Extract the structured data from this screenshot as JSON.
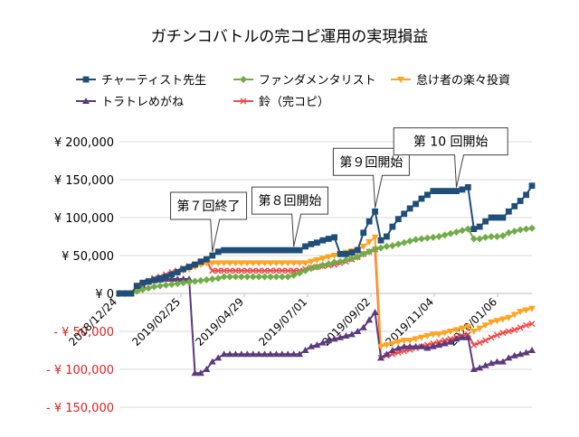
{
  "chart_data": {
    "type": "line",
    "title": "ガチンコバトルの完コピ運用の実現損益",
    "xlabel": "",
    "ylabel": "",
    "ylim": [
      -150000,
      200000
    ],
    "yticks": [
      200000,
      150000,
      100000,
      50000,
      0,
      -50000,
      -100000,
      -150000
    ],
    "ytick_labels": [
      "¥ 200,000",
      "¥ 150,000",
      "¥ 100,000",
      "¥ 50,000",
      "¥ 0",
      "- ¥ 50,000",
      "- ¥ 100,000",
      "- ¥ 150,000"
    ],
    "xtick_labels": [
      "2018/12/24",
      "2019/02/25",
      "2019/04/29",
      "2019/07/01",
      "2019/09/02",
      "2019/11/04",
      "2020/01/06"
    ],
    "grid": true,
    "legend_position": "top",
    "series": [
      {
        "name": "チャーティスト先生",
        "color": "#1f4e79",
        "marker": "square",
        "values": [
          0,
          0,
          0,
          10000,
          14000,
          16000,
          18000,
          20000,
          22000,
          25000,
          28000,
          32000,
          35000,
          38000,
          42000,
          45000,
          50000,
          55000,
          57000,
          57000,
          57000,
          57000,
          57000,
          57000,
          57000,
          57000,
          57000,
          57000,
          57000,
          57000,
          57000,
          57000,
          62000,
          65000,
          67000,
          70000,
          72000,
          74000,
          52000,
          52000,
          54000,
          57000,
          80000,
          95000,
          108000,
          70000,
          75000,
          88000,
          98000,
          105000,
          112000,
          118000,
          125000,
          130000,
          135000,
          135000,
          135000,
          135000,
          135000,
          137000,
          140000,
          85000,
          88000,
          95000,
          100000,
          100000,
          100000,
          108000,
          115000,
          122000,
          130000,
          142000
        ]
      },
      {
        "name": "ファンダメンタリスト",
        "color": "#70ad47",
        "marker": "diamond",
        "values": [
          0,
          0,
          0,
          3000,
          5000,
          7000,
          9000,
          10000,
          11000,
          12000,
          13000,
          14000,
          15000,
          16000,
          17000,
          18000,
          19000,
          20000,
          22000,
          22000,
          22000,
          22000,
          22000,
          22000,
          22000,
          22000,
          22000,
          22000,
          22000,
          22000,
          24000,
          27000,
          30000,
          33000,
          35000,
          37000,
          39000,
          41000,
          42000,
          44000,
          46000,
          48000,
          52000,
          55000,
          58000,
          60000,
          62000,
          63000,
          65000,
          67000,
          69000,
          71000,
          72000,
          73000,
          74000,
          75000,
          77000,
          79000,
          81000,
          83000,
          85000,
          72000,
          72000,
          74000,
          75000,
          75000,
          76000,
          80000,
          82000,
          84000,
          85000,
          86000
        ]
      },
      {
        "name": "怠け者の楽々投資",
        "color": "#ffa320",
        "marker": "triangle-down",
        "values": [
          0,
          0,
          0,
          8000,
          12000,
          15000,
          18000,
          20000,
          22000,
          25000,
          27000,
          30000,
          32000,
          35000,
          38000,
          40000,
          40000,
          40000,
          40000,
          40000,
          40000,
          40000,
          40000,
          40000,
          40000,
          40000,
          40000,
          40000,
          40000,
          40000,
          40000,
          40000,
          40000,
          42000,
          44000,
          46000,
          48000,
          50000,
          52000,
          54000,
          56000,
          58000,
          62000,
          68000,
          74000,
          -70000,
          -68000,
          -66000,
          -64000,
          -62000,
          -62000,
          -60000,
          -58000,
          -56000,
          -54000,
          -54000,
          -52000,
          -50000,
          -48000,
          -46000,
          -44000,
          -50000,
          -46000,
          -42000,
          -38000,
          -36000,
          -34000,
          -32000,
          -28000,
          -24000,
          -22000,
          -20000
        ]
      },
      {
        "name": "トラトレめがね",
        "color": "#5b3a7d",
        "marker": "triangle-up",
        "values": [
          0,
          0,
          0,
          5000,
          10000,
          15000,
          17000,
          18000,
          19000,
          19000,
          19000,
          19000,
          19000,
          -105000,
          -105000,
          -100000,
          -90000,
          -85000,
          -80000,
          -80000,
          -80000,
          -80000,
          -80000,
          -80000,
          -80000,
          -80000,
          -80000,
          -80000,
          -80000,
          -80000,
          -80000,
          -80000,
          -75000,
          -70000,
          -68000,
          -65000,
          -62000,
          -60000,
          -58000,
          -56000,
          -54000,
          -50000,
          -45000,
          -35000,
          -25000,
          -85000,
          -80000,
          -75000,
          -72000,
          -70000,
          -70000,
          -70000,
          -70000,
          -72000,
          -70000,
          -68000,
          -66000,
          -64000,
          -60000,
          -58000,
          -58000,
          -100000,
          -98000,
          -95000,
          -92000,
          -90000,
          -90000,
          -85000,
          -82000,
          -80000,
          -78000,
          -75000
        ]
      },
      {
        "name": "鈴（完コピ）",
        "color": "#f04a4a",
        "marker": "cross",
        "values": [
          0,
          0,
          0,
          5000,
          10000,
          15000,
          20000,
          22000,
          25000,
          28000,
          30000,
          33000,
          36000,
          38000,
          40000,
          42000,
          30000,
          30000,
          30000,
          30000,
          30000,
          30000,
          30000,
          30000,
          30000,
          30000,
          30000,
          30000,
          30000,
          30000,
          30000,
          30000,
          32000,
          34000,
          35000,
          36000,
          37000,
          38000,
          40000,
          42000,
          45000,
          48000,
          52000,
          55000,
          58000,
          -85000,
          -82000,
          -80000,
          -78000,
          -76000,
          -74000,
          -72000,
          -70000,
          -68000,
          -66000,
          -64000,
          -62000,
          -60000,
          -58000,
          -56000,
          -54000,
          -68000,
          -65000,
          -62000,
          -58000,
          -55000,
          -52000,
          -50000,
          -48000,
          -45000,
          -42000,
          -40000
        ]
      }
    ],
    "annotations": [
      {
        "text": "第７回終了",
        "at_index": 16
      },
      {
        "text": "第８回開始",
        "at_index": 30
      },
      {
        "text": "第９回開始",
        "at_index": 44
      },
      {
        "text": "第 10 回開始",
        "at_index": 58
      }
    ]
  }
}
